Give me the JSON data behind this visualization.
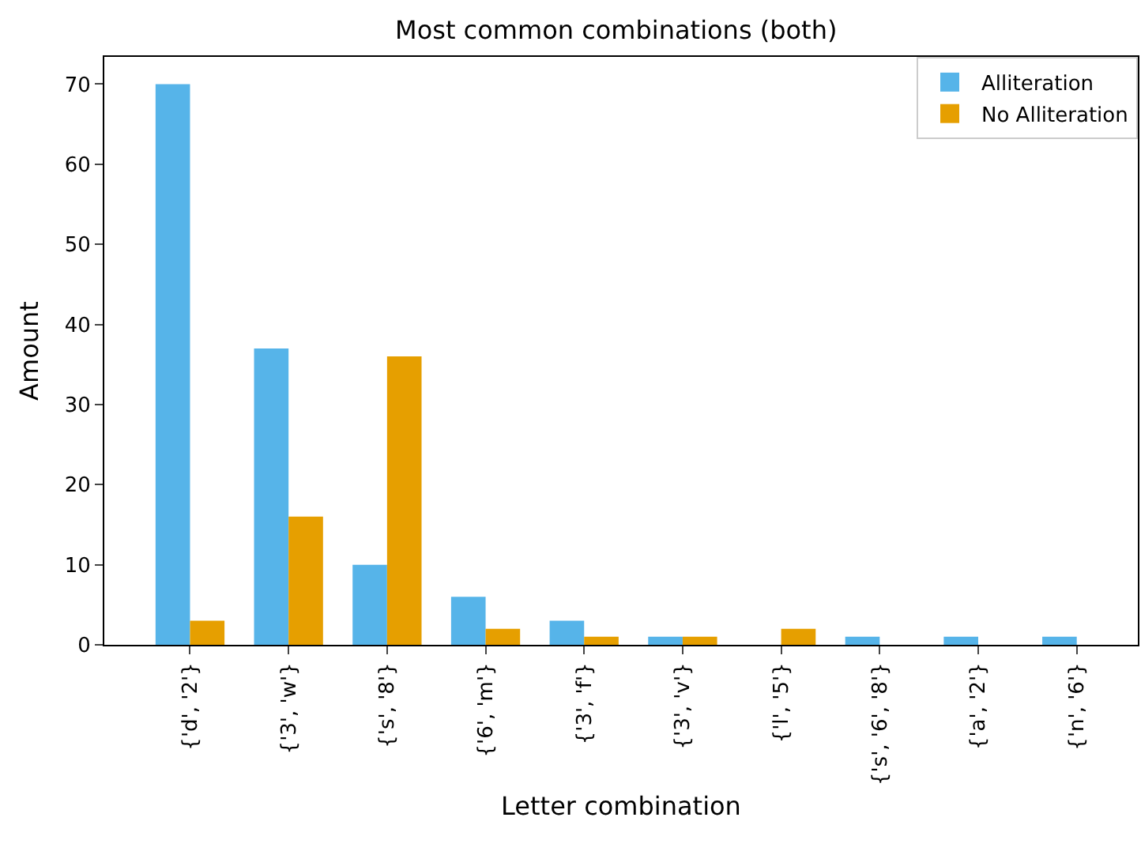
{
  "chart_data": {
    "type": "bar",
    "title": "Most common combinations (both)",
    "xlabel": "Letter combination",
    "ylabel": "Amount",
    "categories": [
      "{'d', '2'}",
      "{'3', 'w'}",
      "{'s', '8'}",
      "{'6', 'm'}",
      "{'3', 'f'}",
      "{'3', 'v'}",
      "{'l', '5'}",
      "{'s', '6', '8'}",
      "{'a', '2'}",
      "{'n', '6'}"
    ],
    "series": [
      {
        "name": "Alliteration",
        "color": "#56b4e9",
        "values": [
          70,
          37,
          10,
          6,
          3,
          1,
          0,
          1,
          1,
          1
        ]
      },
      {
        "name": "No Alliteration",
        "color": "#e69f00",
        "values": [
          3,
          16,
          36,
          2,
          1,
          1,
          2,
          0,
          0,
          0
        ]
      }
    ],
    "ylim": [
      0,
      73.4
    ],
    "yticks": [
      0,
      10,
      20,
      30,
      40,
      50,
      60,
      70
    ],
    "grid": false,
    "legend": "top right"
  }
}
